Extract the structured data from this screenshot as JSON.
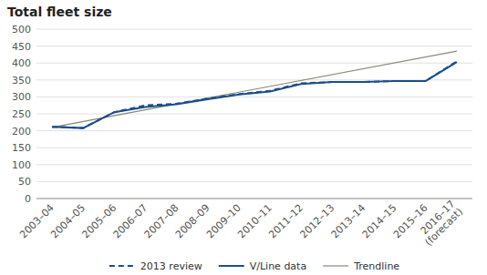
{
  "chart_data": {
    "type": "line",
    "title": "Total fleet size",
    "categories": [
      "2003–04",
      "2004–05",
      "2005–06",
      "2006–07",
      "2007–08",
      "2008–09",
      "2009–10",
      "2010–11",
      "2011–12",
      "2012–13",
      "2013–14",
      "2014–15",
      "2015–16",
      "2016–17\n(forecast)"
    ],
    "series": [
      {
        "name": "2013 review",
        "color": "#1a4f8a",
        "line_style": "dashed",
        "values": [
          212,
          208,
          255,
          275,
          280,
          295,
          308,
          318,
          340,
          344,
          344,
          347,
          347,
          405
        ]
      },
      {
        "name": "V/Line data",
        "color": "#1a4f8a",
        "line_style": "solid",
        "values": [
          212,
          208,
          255,
          270,
          278,
          293,
          307,
          316,
          338,
          344,
          344,
          347,
          347,
          403
        ]
      },
      {
        "name": "Trendline",
        "color": "#888877",
        "line_style": "solid",
        "x": [
          0,
          13
        ],
        "values": [
          210,
          435
        ]
      }
    ],
    "ylim": [
      0,
      500
    ],
    "yticks": [
      0,
      50,
      100,
      150,
      200,
      250,
      300,
      350,
      400,
      450,
      500
    ],
    "grid": true,
    "legend": "bottom"
  }
}
